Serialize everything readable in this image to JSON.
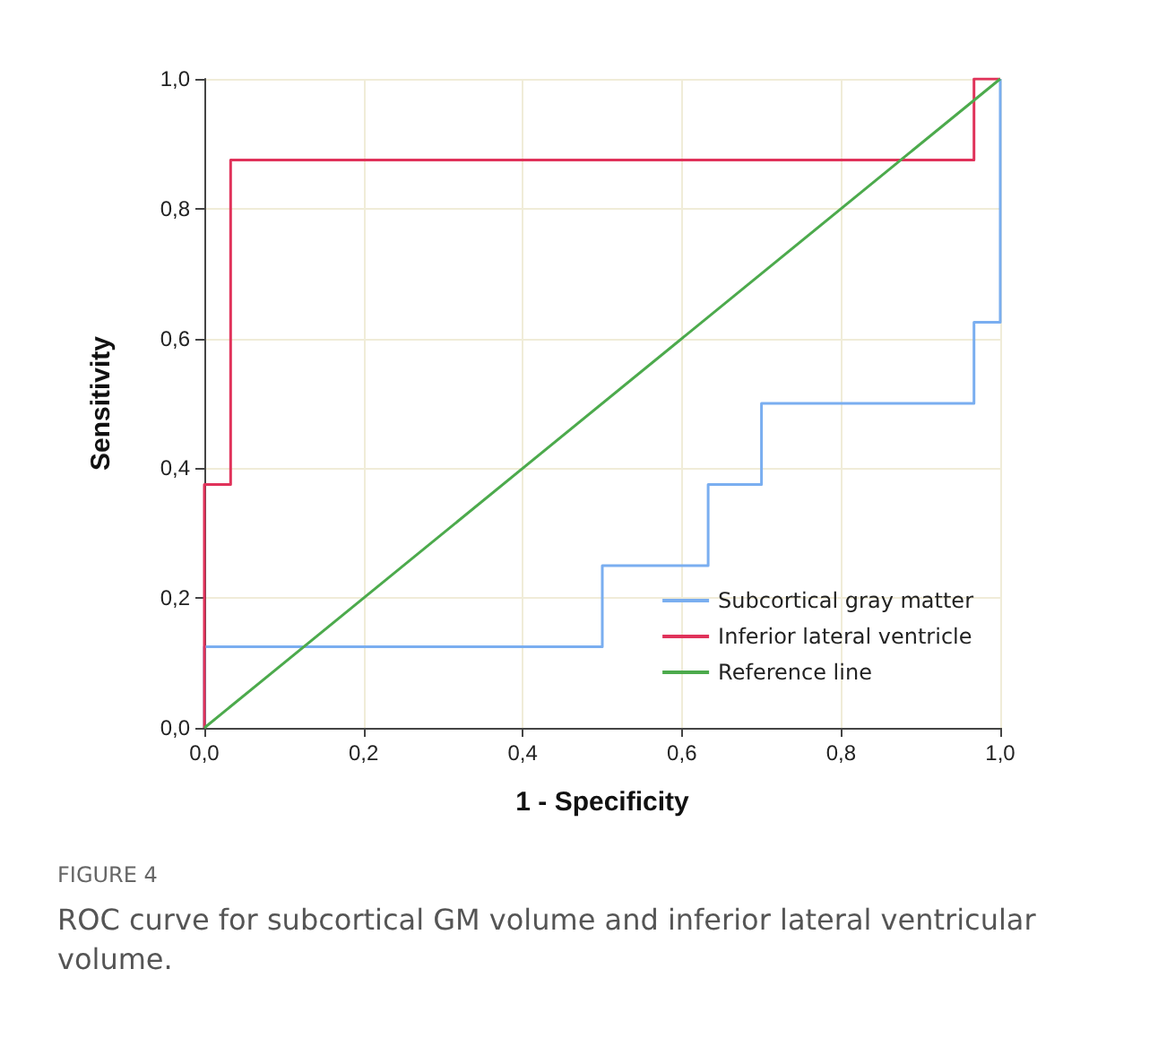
{
  "chart_data": {
    "type": "step",
    "xlabel": "1 - Specificity",
    "ylabel": "Sensitivity",
    "annotations": [
      "FIGURE 4",
      "ROC curve for subcortical GM volume and inferior lateral ventricular volume."
    ],
    "series": [
      {
        "name": "Subcortical gray matter",
        "color": "#7aaef0",
        "x": [
          0,
          0,
          0.5,
          0.633,
          0.7,
          0.967,
          1
        ],
        "values": [
          0,
          0.125,
          0.25,
          0.375,
          0.5,
          0.625,
          1
        ]
      },
      {
        "name": "Inferior lateral ventricle",
        "color": "#e0325a",
        "x": [
          0,
          0,
          0.033,
          0.967,
          1
        ],
        "values": [
          0,
          0.375,
          0.875,
          1,
          1
        ]
      },
      {
        "name": "Reference line",
        "type": "line",
        "color": "#4caa4c",
        "x": [
          0,
          1
        ],
        "values": [
          0,
          1
        ]
      }
    ],
    "xlim": [
      0,
      1
    ],
    "ylim": [
      0,
      1
    ],
    "xticks": [
      {
        "value": 0,
        "label": "0,0"
      },
      {
        "value": 0.2,
        "label": "0,2"
      },
      {
        "value": 0.4,
        "label": "0,4"
      },
      {
        "value": 0.6,
        "label": "0,6"
      },
      {
        "value": 0.8,
        "label": "0,8"
      },
      {
        "value": 1,
        "label": "1,0"
      }
    ],
    "yticks": [
      {
        "value": 0,
        "label": "0,0"
      },
      {
        "value": 0.2,
        "label": "0,2"
      },
      {
        "value": 0.4,
        "label": "0,4"
      },
      {
        "value": 0.6,
        "label": "0,6"
      },
      {
        "value": 0.8,
        "label": "0,8"
      },
      {
        "value": 1,
        "label": "1,0"
      }
    ],
    "grid": true,
    "legend": "bottom right",
    "marker": "none",
    "line_style": "solid"
  }
}
